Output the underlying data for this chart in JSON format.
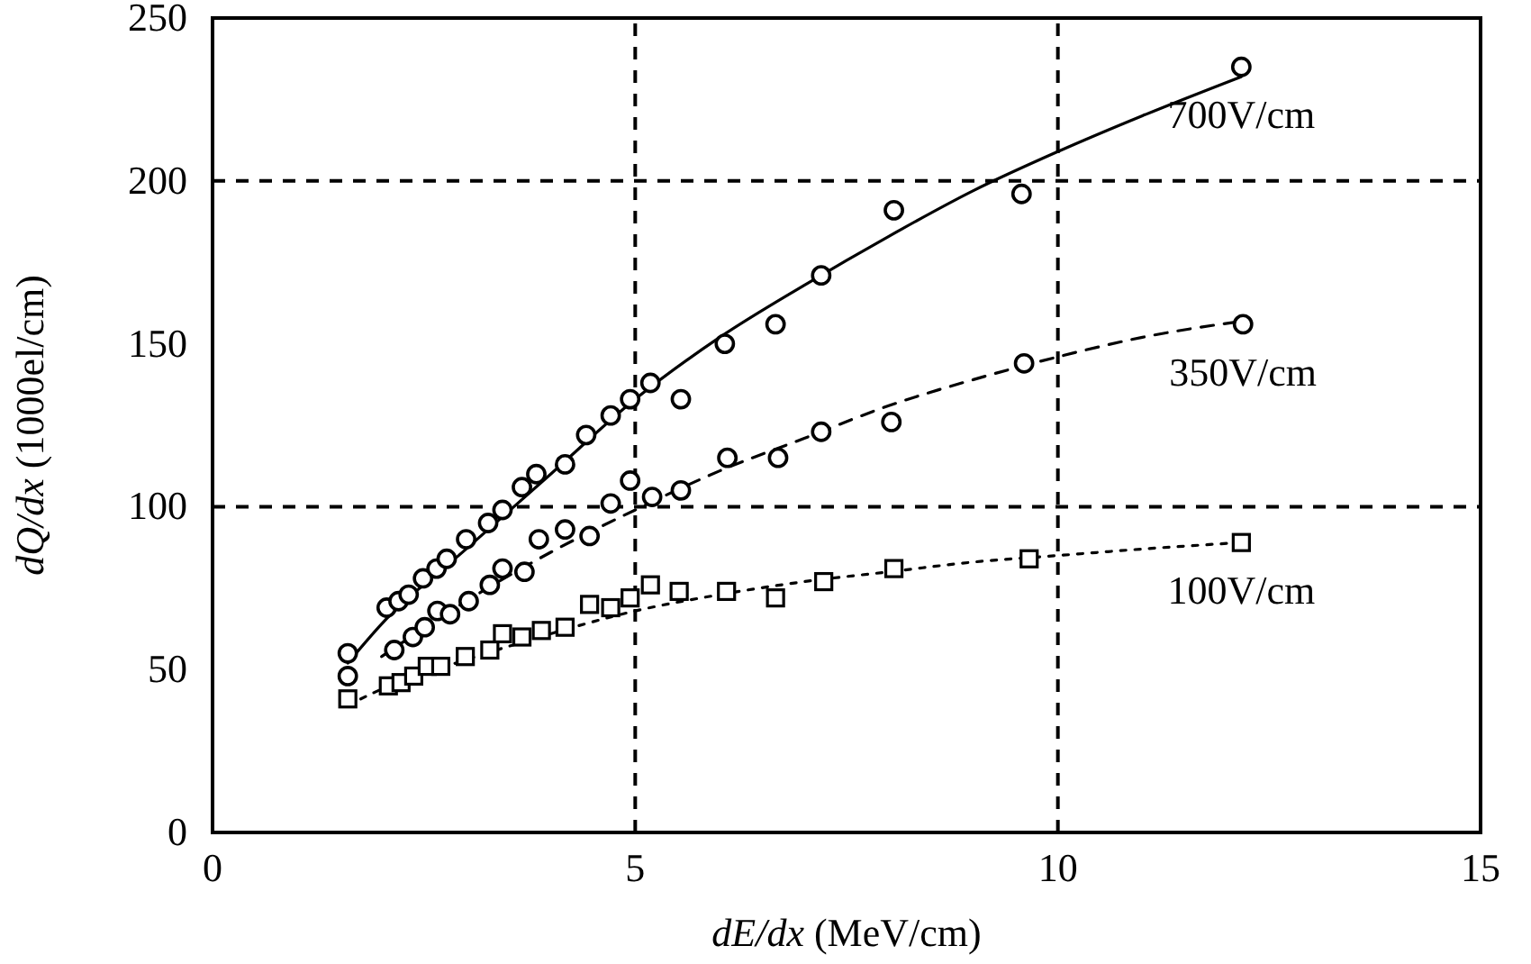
{
  "chart_data": {
    "type": "scatter",
    "xlabel": "dE/dx (MeV/cm)",
    "ylabel": "dQ/dx (1000el/cm)",
    "xlim": [
      0,
      15
    ],
    "ylim": [
      0,
      250
    ],
    "xticks": [
      0,
      5,
      10,
      15
    ],
    "yticks": [
      0,
      50,
      100,
      150,
      200,
      250
    ],
    "grid": false,
    "ref_lines": [
      {
        "axis": "x",
        "value": 5,
        "line_style": "dashed",
        "color": "#000000"
      },
      {
        "axis": "x",
        "value": 10,
        "line_style": "dashed",
        "color": "#000000"
      },
      {
        "axis": "y",
        "value": 100,
        "line_style": "dashed",
        "color": "#000000"
      },
      {
        "axis": "y",
        "value": 200,
        "line_style": "dashed",
        "color": "#000000"
      }
    ],
    "series": [
      {
        "type": "line",
        "color": "#000000",
        "line_style": "solid",
        "marker": "none",
        "x": [
          1.6,
          2,
          3,
          4,
          5,
          6,
          7,
          8,
          9,
          10,
          11,
          12.17
        ],
        "values": [
          52,
          64,
          87,
          110,
          133,
          152,
          168,
          183,
          197,
          209,
          220,
          232
        ]
      },
      {
        "type": "line",
        "color": "#000000",
        "line_style": "dashed",
        "marker": "none",
        "x": [
          2,
          3,
          4,
          5,
          6,
          7,
          8,
          9,
          10,
          11,
          12.19
        ],
        "values": [
          54,
          71,
          86,
          99,
          111,
          121,
          131,
          139,
          146,
          152,
          157
        ]
      },
      {
        "type": "line",
        "color": "#000000",
        "line_style": "dotted",
        "marker": "none",
        "x": [
          1.6,
          2,
          3,
          4,
          5,
          6,
          7,
          8,
          9,
          10,
          11,
          12.17
        ],
        "values": [
          39,
          44,
          53,
          61,
          68,
          73,
          77,
          80,
          83,
          85,
          87,
          89
        ]
      },
      {
        "name": "700V/cm",
        "color": "#000000",
        "marker": "circle",
        "x": [
          1.6,
          2.06,
          2.2,
          2.32,
          2.49,
          2.65,
          2.77,
          3.0,
          3.26,
          3.43,
          3.66,
          3.83,
          4.17,
          4.42,
          4.71,
          4.94,
          5.18,
          5.54,
          6.06,
          6.66,
          7.2,
          8.06,
          9.57,
          12.17
        ],
        "values": [
          55,
          69,
          71,
          73,
          78,
          81,
          84,
          90,
          95,
          99,
          106,
          110,
          113,
          122,
          128,
          133,
          138,
          133,
          150,
          156,
          171,
          191,
          196,
          235
        ]
      },
      {
        "name": "350V/cm",
        "color": "#000000",
        "marker": "circle",
        "x": [
          1.6,
          2.15,
          2.37,
          2.51,
          2.66,
          2.81,
          3.03,
          3.28,
          3.43,
          3.69,
          3.86,
          4.17,
          4.46,
          4.71,
          4.94,
          5.2,
          5.54,
          6.09,
          6.69,
          7.2,
          8.03,
          9.6,
          12.19
        ],
        "values": [
          48,
          56,
          60,
          63,
          68,
          67,
          71,
          76,
          81,
          80,
          90,
          93,
          91,
          101,
          108,
          103,
          105,
          115,
          115,
          123,
          126,
          144,
          156
        ]
      },
      {
        "name": "100V/cm",
        "color": "#000000",
        "marker": "square",
        "x": [
          1.6,
          2.08,
          2.23,
          2.38,
          2.54,
          2.7,
          2.99,
          3.28,
          3.43,
          3.66,
          3.89,
          4.17,
          4.46,
          4.71,
          4.94,
          5.18,
          5.52,
          6.08,
          6.66,
          7.23,
          8.06,
          9.66,
          12.17
        ],
        "values": [
          41,
          45,
          46,
          48,
          51,
          51,
          54,
          56,
          61,
          60,
          62,
          63,
          70,
          69,
          72,
          76,
          74,
          74,
          72,
          77,
          81,
          84,
          89
        ]
      }
    ]
  }
}
